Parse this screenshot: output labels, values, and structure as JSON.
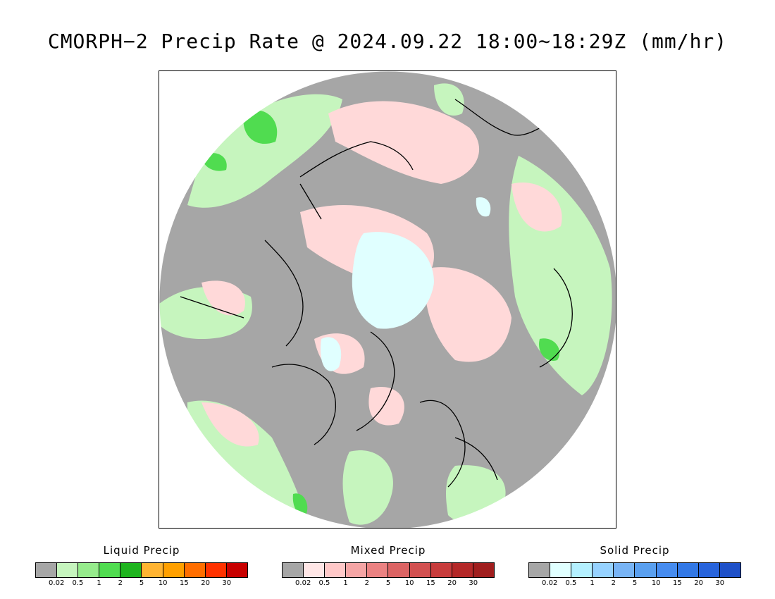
{
  "title": "CMORPH−2 Precip Rate @ 2024.09.22 18:00∼18:29Z (mm/hr)",
  "legends": [
    {
      "title": "Liquid Precip",
      "colors": [
        "#a6a6a6",
        "#c6f5be",
        "#96eb8c",
        "#50dc50",
        "#1eb41e",
        "#ffb432",
        "#ffa000",
        "#ff6e00",
        "#ff3200",
        "#c80000"
      ],
      "ticks": [
        "0.02",
        "0.5",
        "1",
        "2",
        "5",
        "10",
        "15",
        "20",
        "30"
      ]
    },
    {
      "title": "Mixed Precip",
      "colors": [
        "#a6a6a6",
        "#ffe6e6",
        "#ffc8c8",
        "#f5a5a5",
        "#eb8282",
        "#dc6464",
        "#d25050",
        "#c83c3c",
        "#b42828",
        "#a01e1e"
      ],
      "ticks": [
        "0.02",
        "0.5",
        "1",
        "2",
        "5",
        "10",
        "15",
        "20",
        "30"
      ]
    },
    {
      "title": "Solid Precip",
      "colors": [
        "#a6a6a6",
        "#e0ffff",
        "#b4f0ff",
        "#96d2ff",
        "#78b4f5",
        "#5aa0f0",
        "#468cf0",
        "#3278e6",
        "#2864dc",
        "#1e50c8"
      ],
      "ticks": [
        "0.02",
        "0.5",
        "1",
        "2",
        "5",
        "10",
        "15",
        "20",
        "30"
      ]
    }
  ]
}
